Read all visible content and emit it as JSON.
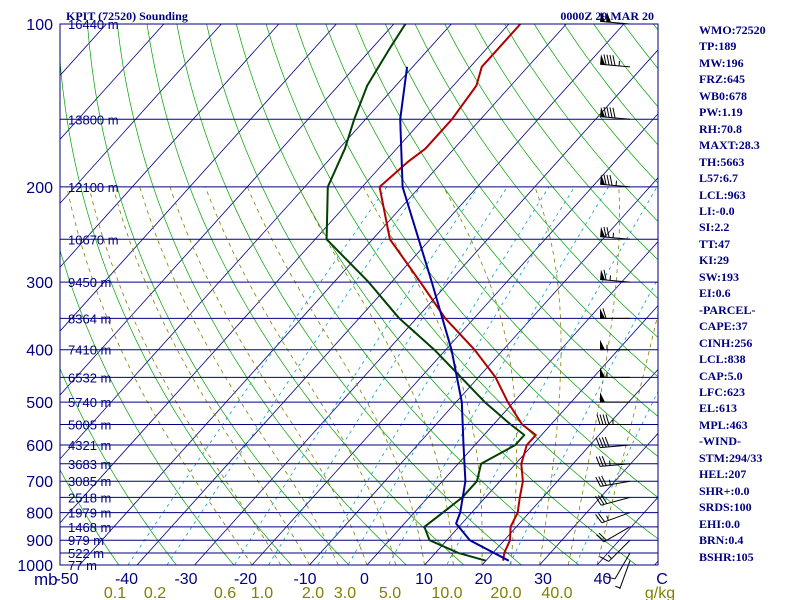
{
  "chart_data": {
    "type": "line",
    "chart_kind": "skew-t log-p sounding",
    "title": "KPIT (72520) Sounding",
    "time_label": "0000Z 29 MAR 20",
    "pressure_unit": "mb",
    "temperature_unit": "C",
    "mixing_ratio_unit": "g/kg",
    "pressure_levels": [
      100,
      200,
      300,
      400,
      500,
      600,
      700,
      800,
      900,
      1000
    ],
    "temperature_ticks": [
      "-50",
      "-40",
      "-30",
      "-20",
      "-10",
      "0",
      "10",
      "20",
      "30",
      "40",
      "C"
    ],
    "mixing_ratio_ticks": [
      "0.1",
      "0.2",
      "0.6",
      "1.0",
      "2.0",
      "3.0",
      "5.0",
      "10.0",
      "20.0",
      "40.0",
      "g/kg"
    ],
    "mixing_ratio_values": [
      0.1,
      0.2,
      0.6,
      1.0,
      2.0,
      3.0,
      5.0,
      10.0,
      20.0,
      40.0
    ],
    "height_labels": [
      {
        "p": 100,
        "text": "16440 m"
      },
      {
        "p": 150,
        "text": "13800 m"
      },
      {
        "p": 200,
        "text": "12100 m"
      },
      {
        "p": 250,
        "text": "10670 m"
      },
      {
        "p": 300,
        "text": "9450 m"
      },
      {
        "p": 350,
        "text": "8364 m"
      },
      {
        "p": 400,
        "text": "7410 m"
      },
      {
        "p": 450,
        "text": "6532 m"
      },
      {
        "p": 500,
        "text": "5740 m"
      },
      {
        "p": 550,
        "text": "5005 m"
      },
      {
        "p": 600,
        "text": "4321 m"
      },
      {
        "p": 650,
        "text": "3683 m"
      },
      {
        "p": 700,
        "text": "3085 m"
      },
      {
        "p": 750,
        "text": "2518 m"
      },
      {
        "p": 800,
        "text": "1979 m"
      },
      {
        "p": 850,
        "text": "1468 m"
      },
      {
        "p": 900,
        "text": "979 m"
      },
      {
        "p": 950,
        "text": "522 m"
      },
      {
        "p": 1000,
        "text": "77 m"
      }
    ],
    "series": [
      {
        "name": "temperature",
        "color": "#b00000",
        "points": [
          [
            982,
            23
          ],
          [
            950,
            22
          ],
          [
            900,
            21
          ],
          [
            850,
            19
          ],
          [
            800,
            18
          ],
          [
            750,
            16
          ],
          [
            700,
            14
          ],
          [
            650,
            11
          ],
          [
            600,
            9
          ],
          [
            575,
            9
          ],
          [
            550,
            5
          ],
          [
            500,
            -1
          ],
          [
            450,
            -7
          ],
          [
            400,
            -15
          ],
          [
            350,
            -25
          ],
          [
            300,
            -35
          ],
          [
            250,
            -47
          ],
          [
            200,
            -57
          ],
          [
            180,
            -56
          ],
          [
            170,
            -55
          ],
          [
            150,
            -55
          ],
          [
            130,
            -56
          ],
          [
            120,
            -58
          ],
          [
            110,
            -58
          ],
          [
            100,
            -58
          ]
        ]
      },
      {
        "name": "dewpoint",
        "color": "#004000",
        "points": [
          [
            982,
            20
          ],
          [
            950,
            14
          ],
          [
            900,
            7
          ],
          [
            850,
            4
          ],
          [
            800,
            5
          ],
          [
            750,
            6
          ],
          [
            700,
            6
          ],
          [
            650,
            4
          ],
          [
            600,
            7
          ],
          [
            575,
            7
          ],
          [
            550,
            3
          ],
          [
            500,
            -5
          ],
          [
            450,
            -13
          ],
          [
            400,
            -22
          ],
          [
            350,
            -33
          ],
          [
            300,
            -44
          ],
          [
            250,
            -58
          ],
          [
            200,
            -66
          ],
          [
            170,
            -69
          ],
          [
            150,
            -72
          ],
          [
            130,
            -75
          ],
          [
            110,
            -77
          ],
          [
            100,
            -78
          ]
        ]
      },
      {
        "name": "parcel",
        "color": "#0000a0",
        "points": [
          [
            982,
            24
          ],
          [
            900,
            14
          ],
          [
            838,
            9
          ],
          [
            800,
            8
          ],
          [
            700,
            4
          ],
          [
            600,
            -2
          ],
          [
            500,
            -9
          ],
          [
            400,
            -19
          ],
          [
            300,
            -33
          ],
          [
            200,
            -53
          ],
          [
            150,
            -64
          ],
          [
            120,
            -71
          ]
        ]
      }
    ],
    "wind_barbs": [
      {
        "p": 982,
        "dir": 200,
        "spd": 5
      },
      {
        "p": 950,
        "dir": 210,
        "spd": 10
      },
      {
        "p": 900,
        "dir": 225,
        "spd": 15
      },
      {
        "p": 850,
        "dir": 240,
        "spd": 20
      },
      {
        "p": 800,
        "dir": 250,
        "spd": 25
      },
      {
        "p": 750,
        "dir": 255,
        "spd": 30
      },
      {
        "p": 700,
        "dir": 260,
        "spd": 35
      },
      {
        "p": 650,
        "dir": 265,
        "spd": 35
      },
      {
        "p": 600,
        "dir": 265,
        "spd": 40
      },
      {
        "p": 550,
        "dir": 270,
        "spd": 45
      },
      {
        "p": 500,
        "dir": 270,
        "spd": 50
      },
      {
        "p": 450,
        "dir": 270,
        "spd": 55
      },
      {
        "p": 400,
        "dir": 270,
        "spd": 55
      },
      {
        "p": 350,
        "dir": 270,
        "spd": 60
      },
      {
        "p": 300,
        "dir": 275,
        "spd": 65
      },
      {
        "p": 250,
        "dir": 275,
        "spd": 75
      },
      {
        "p": 200,
        "dir": 275,
        "spd": 85
      },
      {
        "p": 150,
        "dir": 275,
        "spd": 90
      },
      {
        "p": 120,
        "dir": 275,
        "spd": 95
      },
      {
        "p": 100,
        "dir": 275,
        "spd": 100
      }
    ],
    "grid": true,
    "legend": "none"
  },
  "indices": [
    "WMO:72520",
    "TP:189",
    "MW:196",
    "FRZ:645",
    "WB0:678",
    "PW:1.19",
    "RH:70.8",
    "MAXT:28.3",
    "TH:5663",
    "L57:6.7",
    "LCL:963",
    "LI:-0.0",
    "SI:2.2",
    "TT:47",
    "KI:29",
    "SW:193",
    "EI:0.6",
    "-PARCEL-",
    "CAPE:37",
    "CINH:256",
    "LCL:838",
    "CAP:5.0",
    "LFC:623",
    "EL:613",
    "MPL:463",
    "-WIND-",
    "STM:294/33",
    "HEL:207",
    "SHR+:0.0",
    "SRDS:100",
    "EHI:0.0",
    "BRN:0.4",
    "BSHR:105"
  ],
  "colors": {
    "isobar": "#000080",
    "isotherm": "#000080",
    "dry_adiabat": "#00a000",
    "moist_adiabat": "#808000",
    "mixing_ratio": "#00a0c0",
    "text": "#000080",
    "mixing_ratio_text": "#808000",
    "frame": "#000080"
  }
}
